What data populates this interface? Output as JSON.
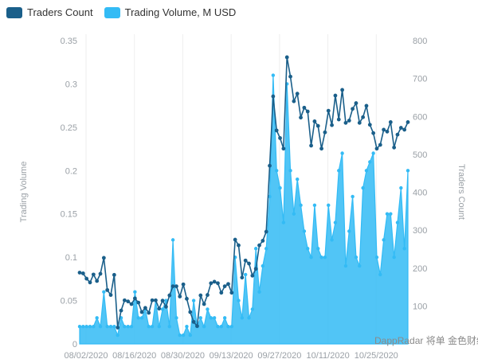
{
  "chart_data": {
    "type": "line",
    "title": "",
    "legend": {
      "placement": "top-left",
      "items": [
        {
          "name": "Traders Count",
          "color": "#1a5f8a"
        },
        {
          "name": "Trading Volume, M USD",
          "color": "#33bbf5"
        }
      ]
    },
    "ylabel_left": "Trading Volume",
    "ylabel_right": "Traders Count",
    "ylim_left": [
      0,
      0.35
    ],
    "ylim_right": [
      0,
      800
    ],
    "yticks_left": [
      "0",
      "0.05",
      "0.1",
      "0.15",
      "0.2",
      "0.25",
      "0.3",
      "0.35"
    ],
    "yticks_right": [
      "100",
      "200",
      "300",
      "400",
      "500",
      "600",
      "700",
      "800"
    ],
    "xticks": [
      "08/02/2020",
      "08/16/2020",
      "08/30/2020",
      "09/13/2020",
      "09/27/2020",
      "10/11/2020",
      "10/25/2020"
    ],
    "grid": "vertical",
    "x_start": "08/02/2020",
    "x_end": "10/30/2020",
    "series": [
      {
        "name": "Trading Volume, M USD",
        "axis": "left",
        "kind": "area",
        "color": "#33bbf5",
        "values": [
          0.02,
          0.02,
          0.02,
          0.02,
          0.02,
          0.03,
          0.02,
          0.06,
          0.02,
          0.02,
          0.02,
          0.01,
          0.03,
          0.02,
          0.02,
          0.02,
          0.06,
          0.03,
          0.03,
          0.04,
          0.02,
          0.02,
          0.05,
          0.02,
          0.04,
          0.05,
          0.02,
          0.12,
          0.03,
          0.01,
          0.01,
          0.02,
          0.01,
          0.05,
          0.02,
          0.03,
          0.02,
          0.04,
          0.03,
          0.03,
          0.02,
          0.02,
          0.03,
          0.02,
          0.02,
          0.1,
          0.05,
          0.03,
          0.08,
          0.03,
          0.04,
          0.11,
          0.06,
          0.09,
          0.11,
          0.17,
          0.31,
          0.2,
          0.18,
          0.14,
          0.3,
          0.2,
          0.15,
          0.19,
          0.16,
          0.13,
          0.11,
          0.1,
          0.16,
          0.11,
          0.1,
          0.1,
          0.16,
          0.12,
          0.14,
          0.2,
          0.22,
          0.09,
          0.13,
          0.17,
          0.1,
          0.09,
          0.18,
          0.2,
          0.21,
          0.22,
          0.1,
          0.08,
          0.12,
          0.15,
          0.15,
          0.1,
          0.14,
          0.18,
          0.11,
          0.2
        ]
      },
      {
        "name": "Traders Count",
        "axis": "right",
        "kind": "line",
        "color": "#1a5f8a",
        "values": [
          188,
          186,
          172,
          162,
          183,
          166,
          185,
          227,
          142,
          129,
          182,
          43,
          88,
          115,
          112,
          105,
          120,
          109,
          84,
          95,
          82,
          115,
          115,
          93,
          114,
          98,
          128,
          152,
          152,
          125,
          157,
          119,
          84,
          58,
          47,
          128,
          105,
          129,
          160,
          164,
          160,
          135,
          152,
          158,
          135,
          275,
          260,
          175,
          220,
          212,
          180,
          198,
          260,
          272,
          296,
          470,
          653,
          563,
          543,
          515,
          756,
          705,
          640,
          660,
          597,
          623,
          613,
          523,
          587,
          575,
          515,
          558,
          615,
          577,
          655,
          592,
          670,
          583,
          589,
          620,
          635,
          583,
          598,
          628,
          578,
          556,
          515,
          525,
          565,
          560,
          585,
          518,
          552,
          570,
          565,
          585
        ]
      }
    ]
  },
  "watermark": "DappRadar 将单 金色财经"
}
